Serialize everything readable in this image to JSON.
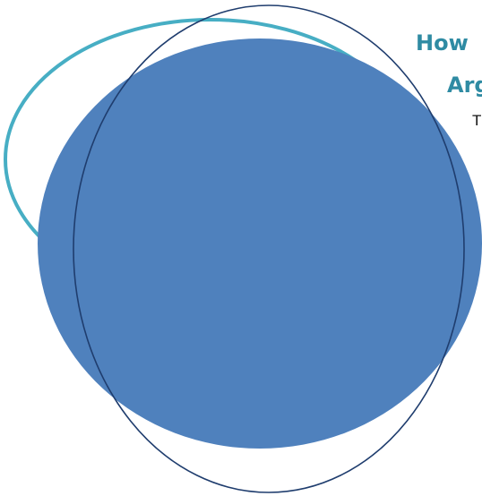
{
  "heading": {
    "line1": "How",
    "line2": "Arg"
  },
  "body_text": "T",
  "colors": {
    "teal_outline": "#47aec4",
    "navy_outline": "#1f3d6e",
    "filled_circle": "#4f81bd",
    "heading": "#2f8ba3",
    "body_text": "#111111"
  },
  "shapes": [
    {
      "name": "teal-ellipse-outline",
      "kind": "outline"
    },
    {
      "name": "filled-blue-ellipse",
      "kind": "filled"
    },
    {
      "name": "navy-ellipse-outline",
      "kind": "outline"
    }
  ]
}
